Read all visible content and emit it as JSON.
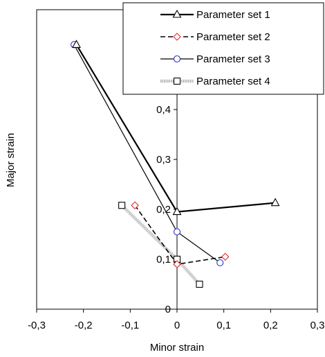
{
  "chart_data": {
    "type": "line",
    "title": "",
    "xlabel": "Minor strain",
    "ylabel": "Major strain",
    "xlim": [
      -0.3,
      0.3
    ],
    "ylim": [
      0,
      0.6
    ],
    "x_ticks": [
      {
        "value": -0.3,
        "label": "-0,3"
      },
      {
        "value": -0.2,
        "label": "-0,2"
      },
      {
        "value": -0.1,
        "label": "-0,1"
      },
      {
        "value": 0,
        "label": "0"
      },
      {
        "value": 0.1,
        "label": "0,1"
      },
      {
        "value": 0.2,
        "label": "0,2"
      },
      {
        "value": 0.3,
        "label": "0,3"
      }
    ],
    "y_ticks": [
      {
        "value": 0,
        "label": "0"
      },
      {
        "value": 0.1,
        "label": "0,1"
      },
      {
        "value": 0.2,
        "label": "0,2"
      },
      {
        "value": 0.3,
        "label": "0,3"
      },
      {
        "value": 0.4,
        "label": "0,4"
      }
    ],
    "grid": false,
    "legend_position": "top-right",
    "series": [
      {
        "name": "Parameter set 1",
        "color": "#000000",
        "line": "solid-thick",
        "marker": "triangle",
        "points": [
          [
            -0.215,
            0.53
          ],
          [
            0.0,
            0.195
          ],
          [
            0.21,
            0.213
          ]
        ]
      },
      {
        "name": "Parameter set 2",
        "color": "#000000",
        "marker_color": "#e8262d",
        "line": "dashed",
        "marker": "diamond",
        "points": [
          [
            -0.09,
            0.208
          ],
          [
            0.0,
            0.09
          ],
          [
            0.103,
            0.105
          ]
        ]
      },
      {
        "name": "Parameter set 3",
        "color": "#000000",
        "marker_color": "#2b36c9",
        "line": "solid-thin",
        "marker": "circle",
        "points": [
          [
            -0.22,
            0.53
          ],
          [
            0.0,
            0.155
          ],
          [
            0.092,
            0.093
          ]
        ]
      },
      {
        "name": "Parameter set 4",
        "color": "#b3b3b3",
        "line": "thick-gray",
        "marker": "square",
        "points": [
          [
            -0.118,
            0.208
          ],
          [
            0.0,
            0.1
          ],
          [
            0.048,
            0.05
          ]
        ]
      }
    ]
  }
}
